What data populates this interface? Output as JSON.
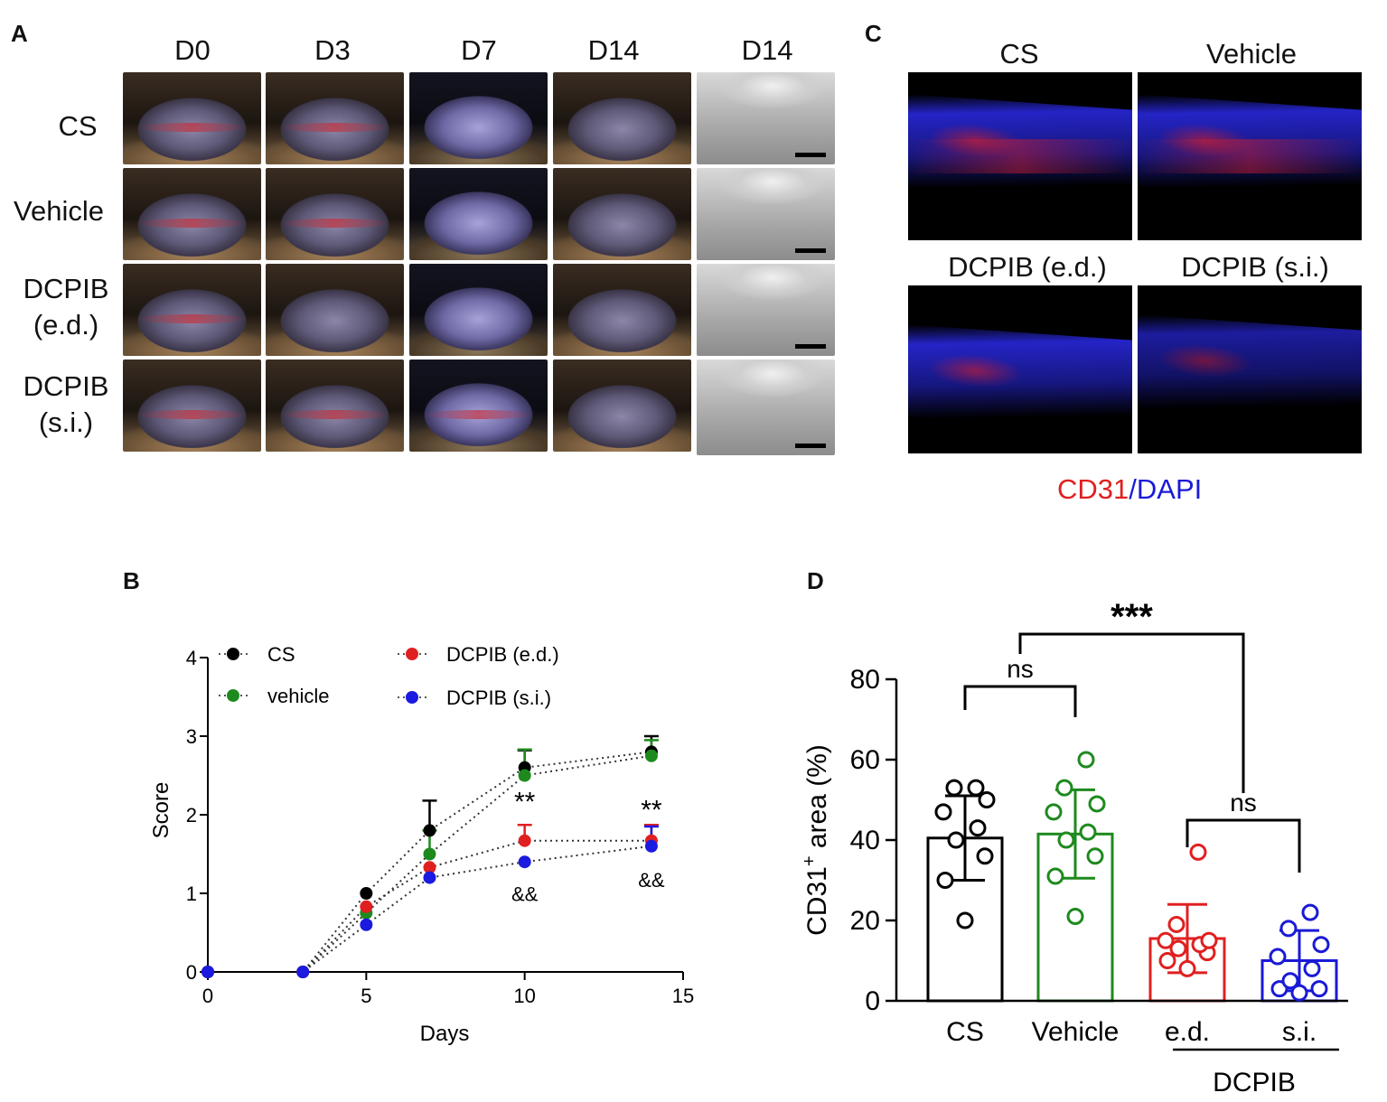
{
  "panels": {
    "a": "A",
    "b": "B",
    "c": "C",
    "d": "D"
  },
  "panel_a": {
    "columns": [
      "D0",
      "D3",
      "D7",
      "D14",
      "D14"
    ],
    "rows": [
      {
        "line1": "CS",
        "line2": ""
      },
      {
        "line1": "Vehicle",
        "line2": ""
      },
      {
        "line1": "DCPIB",
        "line2": "(e.d.)"
      },
      {
        "line1": "DCPIB",
        "line2": "(s.i.)"
      }
    ]
  },
  "panel_c": {
    "titles": [
      "CS",
      "Vehicle",
      "DCPIB (e.d.)",
      "DCPIB (s.i.)"
    ],
    "stain_red": "CD31",
    "stain_sep": "/",
    "stain_blue": "DAPI",
    "red_color": "#e02020",
    "blue_color": "#1a1ad6"
  },
  "chart_data": [
    {
      "type": "line",
      "panel": "B",
      "xlabel": "Days",
      "ylabel": "Score",
      "xlim": [
        0,
        15
      ],
      "ylim": [
        0,
        4
      ],
      "xticks": [
        0,
        5,
        10,
        15
      ],
      "yticks": [
        0,
        1,
        2,
        3,
        4
      ],
      "series": [
        {
          "name": "CS",
          "color": "#000000",
          "x": [
            0,
            3,
            5,
            7,
            10,
            14
          ],
          "values": [
            0,
            0,
            1.0,
            1.8,
            2.6,
            2.8
          ],
          "err": [
            0,
            0,
            0,
            0.38,
            0.22,
            0.2
          ]
        },
        {
          "name": "vehicle",
          "color": "#1e8a1e",
          "x": [
            0,
            3,
            5,
            7,
            10,
            14
          ],
          "values": [
            0,
            0,
            0.75,
            1.5,
            2.5,
            2.75
          ],
          "err": [
            0,
            0,
            0,
            0.3,
            0.33,
            0.2
          ]
        },
        {
          "name": "DCPIB (e.d.)",
          "color": "#e02020",
          "x": [
            0,
            3,
            5,
            7,
            10,
            14
          ],
          "values": [
            0,
            0,
            0.83,
            1.33,
            1.67,
            1.67
          ],
          "err": [
            0,
            0,
            0,
            0,
            0.2,
            0.2
          ]
        },
        {
          "name": "DCPIB (s.i.)",
          "color": "#1a1ae0",
          "x": [
            0,
            3,
            5,
            7,
            10,
            14
          ],
          "values": [
            0,
            0,
            0.6,
            1.2,
            1.4,
            1.6
          ],
          "err": [
            0,
            0,
            0,
            0,
            0,
            0.25
          ]
        }
      ],
      "annotations": [
        {
          "text": "**",
          "x": 10,
          "y": 2.05
        },
        {
          "text": "**",
          "x": 14,
          "y": 1.95
        },
        {
          "text": "&&",
          "x": 10,
          "y": 0.9
        },
        {
          "text": "&&",
          "x": 14,
          "y": 1.08
        }
      ],
      "legend": "top-left"
    },
    {
      "type": "bar",
      "panel": "D",
      "categories": [
        "CS",
        "Vehicle",
        "e.d.",
        "s.i."
      ],
      "group_label": "DCPIB",
      "ylabel_main": "CD31",
      "ylabel_sup": "+",
      "ylabel_rest": " area (%)",
      "ylim": [
        0,
        80
      ],
      "yticks": [
        0,
        20,
        40,
        60,
        80
      ],
      "colors": [
        "#000000",
        "#1e8a1e",
        "#e02020",
        "#1a1ad6"
      ],
      "values": [
        40.5,
        41.5,
        15.5,
        10.0
      ],
      "errors": [
        10.5,
        11.0,
        8.5,
        7.5
      ],
      "points": [
        [
          20,
          30,
          36,
          40,
          43,
          47,
          50,
          53,
          53
        ],
        [
          21,
          31,
          36,
          40,
          42,
          47,
          49,
          53,
          60
        ],
        [
          8,
          10,
          12,
          13,
          14,
          15,
          15,
          19,
          37
        ],
        [
          2,
          3,
          3,
          5,
          8,
          11,
          14,
          18,
          22
        ]
      ],
      "comparisons": [
        {
          "a": 0,
          "b": 1,
          "label": "ns"
        },
        {
          "a": 2,
          "b": 3,
          "label": "ns"
        },
        {
          "a": 0.5,
          "b": 2.5,
          "label": "***"
        }
      ]
    }
  ]
}
